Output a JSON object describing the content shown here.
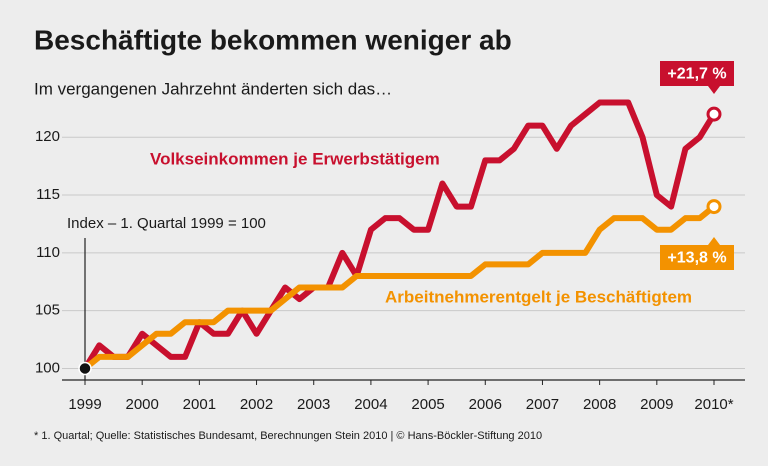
{
  "chart_data": {
    "type": "line",
    "title": "Beschäftigte bekommen weniger ab",
    "subtitle": "Im vergangenen Jahrzehnt änderten sich das…",
    "y_label": "Index – 1. Quartal 1999 = 100",
    "footnote": "* 1. Quartal; Quelle: Statistisches Bundesamt, Berechnungen Stein 2010 | © Hans-Böckler-Stiftung 2010",
    "x": [
      1999,
      1999.25,
      1999.5,
      1999.75,
      2000,
      2000.25,
      2000.5,
      2000.75,
      2001,
      2001.25,
      2001.5,
      2001.75,
      2002,
      2002.25,
      2002.5,
      2002.75,
      2003,
      2003.25,
      2003.5,
      2003.75,
      2004,
      2004.25,
      2004.5,
      2004.75,
      2005,
      2005.25,
      2005.5,
      2005.75,
      2006,
      2006.25,
      2006.5,
      2006.75,
      2007,
      2007.25,
      2007.5,
      2007.75,
      2008,
      2008.25,
      2008.5,
      2008.75,
      2009,
      2009.25,
      2009.5,
      2009.75,
      2010
    ],
    "series": [
      {
        "name": "Volkseinkommen je Erwerbstätigem",
        "color": "#c8102e",
        "end_label": "+21,7 %",
        "values": [
          100,
          102,
          101,
          101,
          103,
          102,
          101,
          101,
          104,
          103,
          103,
          105,
          103,
          105,
          107,
          106,
          107,
          107,
          110,
          108,
          112,
          113,
          113,
          112,
          112,
          116,
          114,
          114,
          118,
          118,
          119,
          121,
          121,
          119,
          121,
          122,
          123,
          123,
          123,
          120,
          115,
          114,
          119,
          120,
          122
        ]
      },
      {
        "name": "Arbeitnehmerentgelt je Beschäftigtem",
        "color": "#f39200",
        "end_label": "+13,8 %",
        "values": [
          100,
          101,
          101,
          101,
          102,
          103,
          103,
          104,
          104,
          104,
          105,
          105,
          105,
          105,
          106,
          107,
          107,
          107,
          107,
          108,
          108,
          108,
          108,
          108,
          108,
          108,
          108,
          108,
          109,
          109,
          109,
          109,
          110,
          110,
          110,
          110,
          112,
          113,
          113,
          113,
          112,
          112,
          113,
          113,
          114
        ]
      }
    ],
    "xlim": [
      1999,
      2010
    ],
    "xticks": [
      1999,
      2000,
      2001,
      2002,
      2003,
      2004,
      2005,
      2006,
      2007,
      2008,
      2009,
      {
        "value": 2010,
        "label": "2010*"
      }
    ],
    "ylim": [
      99,
      124
    ],
    "yticks": [
      100,
      105,
      110,
      115,
      120
    ],
    "grid": true
  }
}
